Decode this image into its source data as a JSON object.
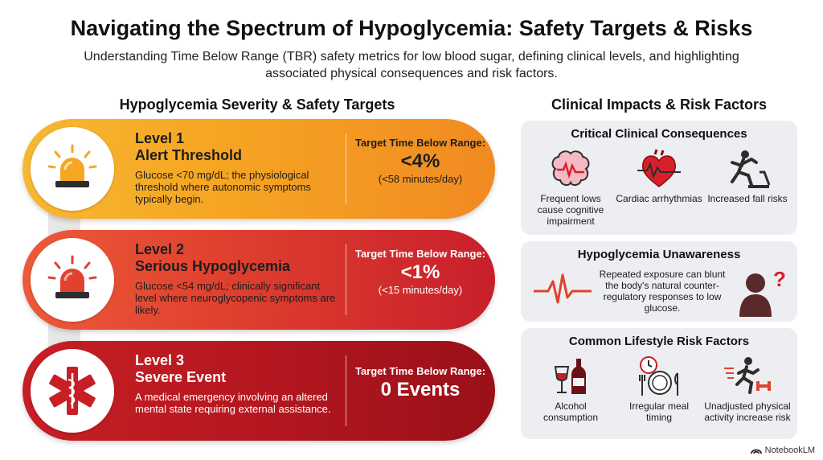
{
  "header": {
    "title": "Navigating the Spectrum of Hypoglycemia: Safety Targets & Risks",
    "subtitle": "Understanding Time Below Range (TBR) safety metrics for low blood sugar, defining clinical levels, and highlighting associated physical consequences and risk factors."
  },
  "left": {
    "heading": "Hypoglycemia Severity & Safety Targets",
    "levels": [
      {
        "num": "Level 1",
        "name": "Alert Threshold",
        "desc": "Glucose <70 mg/dL; the physiological threshold where autonomic symptoms typically begin.",
        "target_label": "Target Time Below Range:",
        "target_value": "<4%",
        "target_note": "(<58 minutes/day)",
        "icon": "siren-icon",
        "color": "#f6a623"
      },
      {
        "num": "Level 2",
        "name": "Serious Hypoglycemia",
        "desc": "Glucose <54 mg/dL; clinically significant level where neuroglycopenic symptoms are likely.",
        "target_label": "Target Time Below Range:",
        "target_value": "<1%",
        "target_note": "(<15 minutes/day)",
        "icon": "siren-icon",
        "color": "#e1422f"
      },
      {
        "num": "Level 3",
        "name": "Severe Event",
        "desc": "A medical emergency involving an altered mental state requiring external assistance.",
        "target_label": "Target Time Below Range:",
        "target_value": "0 Events",
        "target_note": "",
        "icon": "star-of-life-icon",
        "color": "#b5171f"
      }
    ]
  },
  "right": {
    "heading": "Clinical Impacts & Risk Factors",
    "consequences": {
      "title": "Critical Clinical Consequences",
      "items": [
        {
          "label": "Frequent lows cause cognitive impairment",
          "icon": "brain-icon"
        },
        {
          "label": "Cardiac arrhythmias",
          "icon": "heart-icon"
        },
        {
          "label": "Increased fall risks",
          "icon": "falling-person-icon"
        }
      ]
    },
    "unawareness": {
      "title": "Hypoglycemia Unawareness",
      "text": "Repeated exposure can blunt the body's natural counter-regulatory responses to low glucose.",
      "icons": [
        "pulse-wave-icon",
        "confused-person-icon"
      ]
    },
    "lifestyle": {
      "title": "Common Lifestyle Risk Factors",
      "items": [
        {
          "label": "Alcohol consumption",
          "icon": "wine-icon"
        },
        {
          "label": "Irregular meal timing",
          "icon": "meal-clock-icon"
        },
        {
          "label": "Unadjusted physical activity increase risk",
          "icon": "running-person-icon"
        }
      ]
    }
  },
  "brand": {
    "name": "NotebookLM"
  }
}
